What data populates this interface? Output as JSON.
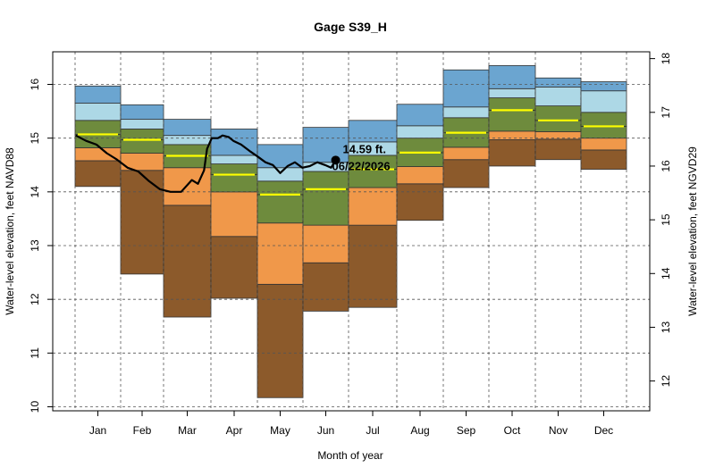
{
  "chart_data": {
    "type": "area",
    "title": "Gage S39_H",
    "xlabel": "Month of year",
    "ylabel": "Water-level elevation, feet NAVD88",
    "ylabel_right": "Water-level elevation, feet NGVD29",
    "ylim": [
      9.9,
      16.6
    ],
    "yticks": [
      10,
      11,
      12,
      13,
      14,
      15,
      16
    ],
    "ytick_labels": [
      "10",
      "11",
      "12",
      "13",
      "14",
      "15",
      "16"
    ],
    "right_offset": 1.52,
    "yticks_right": [
      12,
      13,
      14,
      15,
      16,
      17,
      18
    ],
    "ytick_labels_right": [
      "12",
      "13",
      "14",
      "15",
      "16",
      "17",
      "18"
    ],
    "months": [
      "Jan",
      "Feb",
      "Mar",
      "Apr",
      "May",
      "Jun",
      "Jul",
      "Aug",
      "Sep",
      "Oct",
      "Nov",
      "Dec"
    ],
    "grid": true,
    "band_colors": [
      "#8c5a2b",
      "#f0984a",
      "#6e8b3d",
      "#add8e6",
      "#6ba5d0"
    ],
    "median_color": "#ffff00",
    "bands": [
      {
        "month": "Jan",
        "levels": [
          14.1,
          14.58,
          14.82,
          15.07,
          15.33,
          15.65,
          15.97
        ]
      },
      {
        "month": "Feb",
        "levels": [
          12.47,
          14.4,
          14.72,
          14.97,
          15.17,
          15.35,
          15.62
        ]
      },
      {
        "month": "Mar",
        "levels": [
          11.67,
          13.75,
          14.45,
          14.67,
          14.88,
          15.05,
          15.35
        ]
      },
      {
        "month": "Apr",
        "levels": [
          12.02,
          13.17,
          14.0,
          14.32,
          14.52,
          14.68,
          15.17
        ]
      },
      {
        "month": "May",
        "levels": [
          10.17,
          12.28,
          13.42,
          13.95,
          14.2,
          14.45,
          14.88
        ]
      },
      {
        "month": "Jun",
        "levels": [
          11.78,
          12.68,
          13.38,
          14.05,
          14.38,
          14.55,
          15.2
        ]
      },
      {
        "month": "Jul",
        "levels": [
          11.85,
          13.38,
          14.08,
          14.42,
          14.68,
          14.93,
          15.33
        ]
      },
      {
        "month": "Aug",
        "levels": [
          13.47,
          14.15,
          14.47,
          14.73,
          15.0,
          15.23,
          15.63
        ]
      },
      {
        "month": "Sep",
        "levels": [
          14.08,
          14.6,
          14.83,
          15.1,
          15.38,
          15.58,
          16.27
        ]
      },
      {
        "month": "Oct",
        "levels": [
          14.48,
          14.97,
          15.13,
          15.52,
          15.75,
          15.92,
          16.35
        ]
      },
      {
        "month": "Nov",
        "levels": [
          14.6,
          14.98,
          15.12,
          15.33,
          15.6,
          15.95,
          16.12
        ]
      },
      {
        "month": "Dec",
        "levels": [
          14.42,
          14.78,
          15.0,
          15.22,
          15.48,
          15.88,
          16.05
        ]
      }
    ],
    "series": [
      {
        "type": "line",
        "x_day_of_year": [
          1,
          8,
          15,
          22,
          29,
          36,
          43,
          50,
          57,
          64,
          71,
          78,
          82,
          86,
          88,
          91,
          95,
          98,
          102,
          105,
          110,
          116,
          121,
          126,
          131,
          136,
          141,
          146,
          151,
          156,
          161,
          166,
          170,
          173
        ],
        "y": [
          15.05,
          14.95,
          14.88,
          14.72,
          14.6,
          14.45,
          14.38,
          14.2,
          14.05,
          14.0,
          14.0,
          14.22,
          14.15,
          14.4,
          14.8,
          15.0,
          15.0,
          15.05,
          15.02,
          14.95,
          14.88,
          14.75,
          14.65,
          14.55,
          14.5,
          14.35,
          14.48,
          14.55,
          14.45,
          14.48,
          14.55,
          14.5,
          14.45,
          14.59
        ]
      }
    ],
    "latest_point": {
      "date": "06/22/2026",
      "value": 14.59,
      "label": "14.59 ft."
    }
  }
}
